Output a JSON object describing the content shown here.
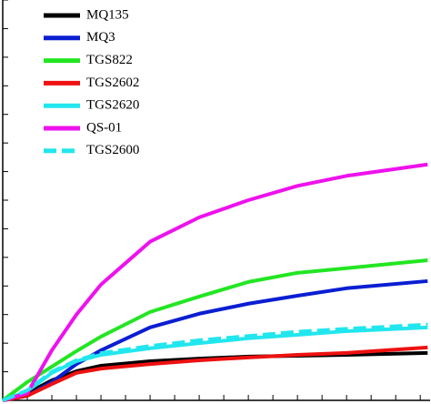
{
  "chart_data": {
    "type": "line",
    "x": [
      0,
      1,
      2,
      3,
      4,
      6,
      8,
      10,
      12,
      14,
      17.3
    ],
    "xlim": [
      0,
      17.4
    ],
    "xticks": [
      0,
      1,
      2,
      3,
      4,
      5,
      6,
      7,
      8,
      9,
      10,
      11,
      12,
      13,
      14,
      15,
      16,
      17
    ],
    "ylim": [
      0,
      14
    ],
    "yticks": [
      0,
      1,
      2,
      3,
      4,
      5,
      6,
      7,
      8,
      9,
      10,
      11,
      12,
      13,
      14
    ],
    "legend": "upper-left",
    "series": [
      {
        "name": "MQ135",
        "color": "#000000",
        "style": "solid",
        "values": [
          0,
          0.25,
          0.7,
          1.02,
          1.21,
          1.37,
          1.46,
          1.53,
          1.56,
          1.59,
          1.66
        ]
      },
      {
        "name": "MQ3",
        "color": "#0a1ed2",
        "style": "solid",
        "values": [
          0,
          0.16,
          0.64,
          1.27,
          1.75,
          2.55,
          3.03,
          3.38,
          3.66,
          3.92,
          4.17
        ]
      },
      {
        "name": "TGS822",
        "color": "#22e622",
        "style": "solid",
        "values": [
          0,
          0.64,
          1.18,
          1.72,
          2.23,
          3.09,
          3.63,
          4.14,
          4.46,
          4.62,
          4.9
        ]
      },
      {
        "name": "TGS2602",
        "color": "#ee1111",
        "style": "solid",
        "values": [
          0,
          0.16,
          0.57,
          0.96,
          1.11,
          1.27,
          1.4,
          1.5,
          1.59,
          1.66,
          1.85
        ]
      },
      {
        "name": "TGS2620",
        "color": "#22e6ee",
        "style": "solid",
        "values": [
          0,
          0.32,
          0.96,
          1.37,
          1.59,
          1.82,
          2.0,
          2.17,
          2.29,
          2.42,
          2.55
        ]
      },
      {
        "name": "QS-01",
        "color": "#ee11ee",
        "style": "solid",
        "values": [
          0,
          0.25,
          1.75,
          3.0,
          4.05,
          5.55,
          6.4,
          7.0,
          7.5,
          7.85,
          8.25
        ]
      },
      {
        "name": "TGS2600",
        "color": "#22e6ee",
        "style": "dashed",
        "values": [
          0,
          0.35,
          1.0,
          1.4,
          1.65,
          1.9,
          2.1,
          2.25,
          2.4,
          2.5,
          2.65
        ]
      }
    ]
  }
}
